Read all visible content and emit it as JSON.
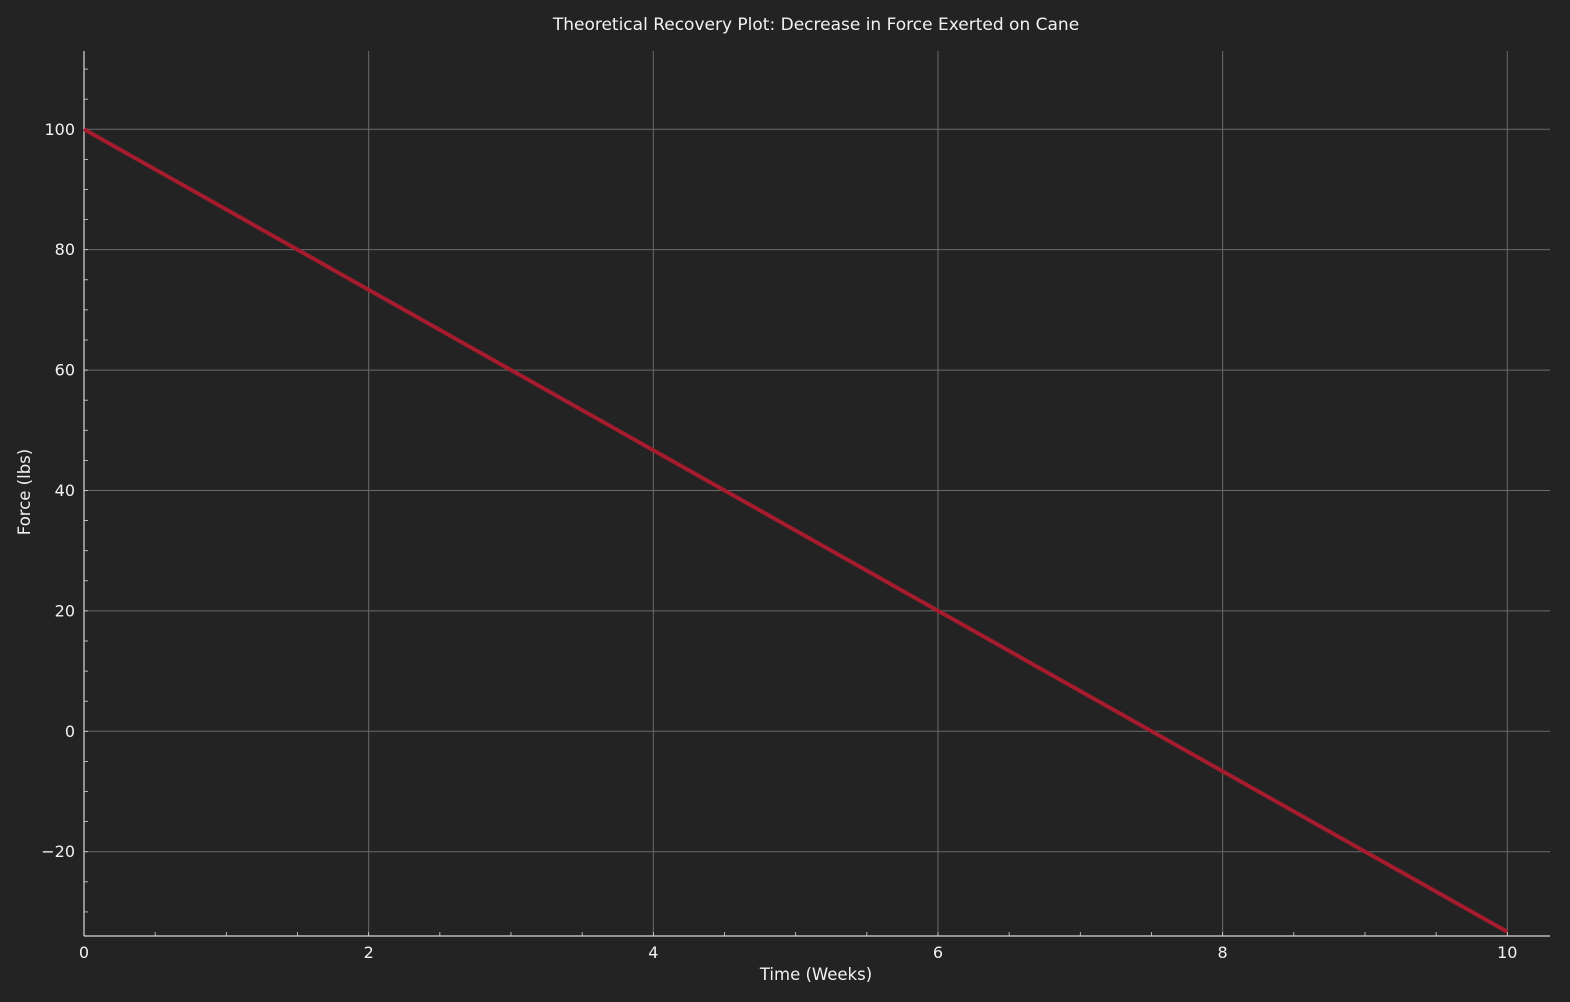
{
  "chart_data": {
    "type": "line",
    "title": "Theoretical Recovery Plot: Decrease in Force Exerted on Cane",
    "xlabel": "Time (Weeks)",
    "ylabel": "Force (lbs)",
    "xlim": [
      0,
      10.3
    ],
    "ylim": [
      -34,
      113
    ],
    "x_ticks": [
      0,
      2,
      4,
      6,
      8,
      10
    ],
    "y_ticks": [
      -20,
      0,
      20,
      40,
      60,
      80,
      100
    ],
    "x_tick_labels": [
      "0",
      "2",
      "4",
      "6",
      "8",
      "10"
    ],
    "y_tick_labels": [
      "−20",
      "0",
      "20",
      "40",
      "60",
      "80",
      "100"
    ],
    "grid": true,
    "series": [
      {
        "color": "#a51c2e",
        "x": [
          0,
          10
        ],
        "y": [
          100,
          -33.3
        ]
      }
    ]
  },
  "colors": {
    "background": "#232323",
    "grid": "#6a6a6a",
    "axis": "#d8d8d8",
    "text": "#f2f2f2"
  }
}
